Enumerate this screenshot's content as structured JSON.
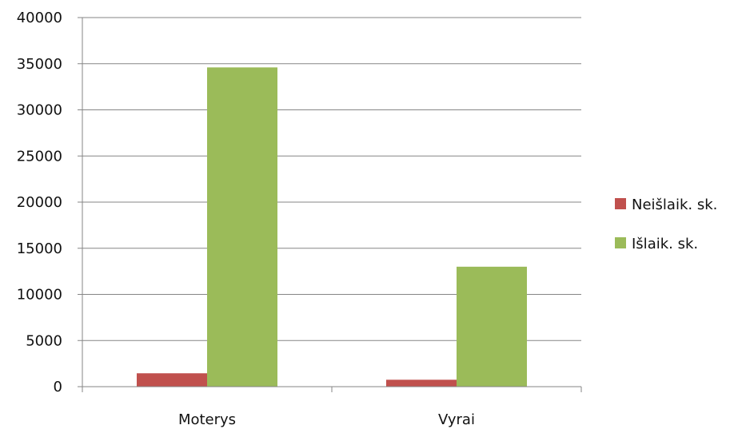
{
  "chart_data": {
    "type": "bar",
    "categories": [
      "Moterys",
      "Vyrai"
    ],
    "series": [
      {
        "name": "Neišlaik. sk.",
        "values": [
          1450,
          750
        ],
        "color": "#c0504d"
      },
      {
        "name": "Išlaik. sk.",
        "values": [
          34600,
          13000
        ],
        "color": "#9bbb59"
      }
    ],
    "y_ticks": [
      "0",
      "5000",
      "10000",
      "15000",
      "20000",
      "25000",
      "30000",
      "35000",
      "40000"
    ],
    "ylim": [
      0,
      40000
    ],
    "title": "",
    "xlabel": "",
    "ylabel": "",
    "grid": true,
    "legend_position": "right"
  }
}
